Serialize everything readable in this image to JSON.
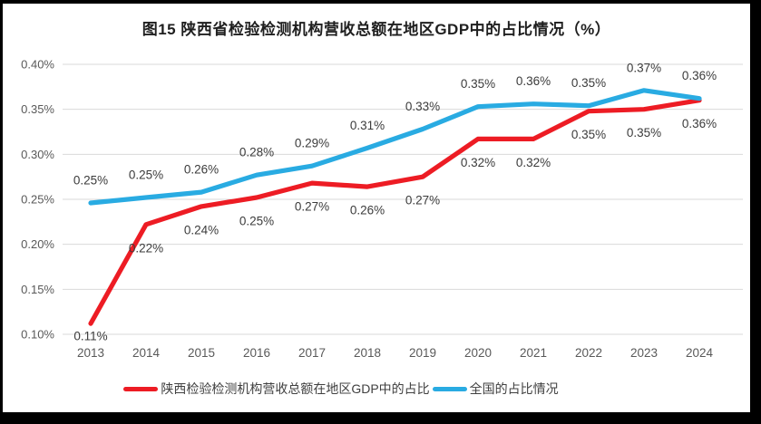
{
  "window": {
    "frame_color": "#000000",
    "card_color": "#ffffff"
  },
  "title": "图15 陕西省检验检测机构营收总额在地区GDP中的占比情况（%）",
  "chart_data": {
    "type": "line",
    "title": "图15 陕西省检验检测机构营收总额在地区GDP中的占比情况（%）",
    "xlabel": "",
    "ylabel": "",
    "x": [
      "2013",
      "2014",
      "2015",
      "2016",
      "2017",
      "2018",
      "2019",
      "2020",
      "2021",
      "2022",
      "2023",
      "2024"
    ],
    "ylim": [
      0.1,
      0.4
    ],
    "y_tick_values": [
      0.4,
      0.35,
      0.3,
      0.25,
      0.2,
      0.15,
      0.1
    ],
    "y_tick_labels": [
      "0.40%",
      "0.35%",
      "0.30%",
      "0.25%",
      "0.20%",
      "0.15%",
      "0.10%"
    ],
    "grid": true,
    "legend_position": "bottom",
    "series": [
      {
        "name": "陕西检验检测机构营收总额在地区GDP中的占比",
        "color": "#ED1C24",
        "label_side": "below",
        "values": [
          0.112,
          0.222,
          0.242,
          0.252,
          0.268,
          0.264,
          0.275,
          0.317,
          0.317,
          0.348,
          0.35,
          0.36
        ],
        "labels": [
          "0.11%",
          "0.22%",
          "0.24%",
          "0.25%",
          "0.27%",
          "0.26%",
          "0.27%",
          "0.32%",
          "0.32%",
          "0.35%",
          "0.35%",
          "0.36%"
        ]
      },
      {
        "name": "全国的占比情况",
        "color": "#29ABE2",
        "label_side": "above",
        "values": [
          0.246,
          0.252,
          0.258,
          0.277,
          0.287,
          0.307,
          0.328,
          0.353,
          0.356,
          0.354,
          0.371,
          0.362
        ],
        "labels": [
          "0.25%",
          "0.25%",
          "0.26%",
          "0.28%",
          "0.29%",
          "0.31%",
          "0.33%",
          "0.35%",
          "0.36%",
          "0.35%",
          "0.37%",
          "0.36%"
        ]
      }
    ],
    "colors": {
      "grid": "#D9D9D9",
      "axis_text": "#595959",
      "data_label_text": "#3b3b3b"
    }
  }
}
